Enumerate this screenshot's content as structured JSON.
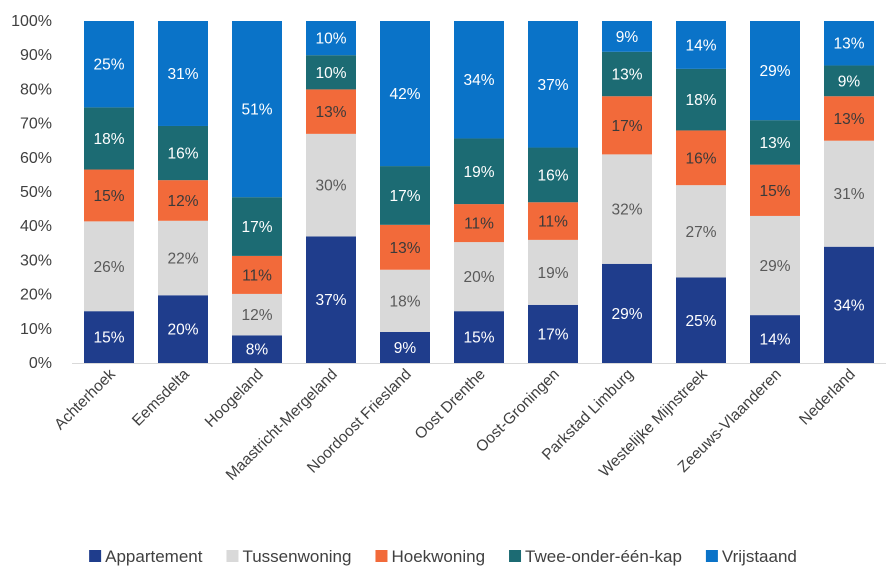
{
  "chart_data": {
    "type": "bar",
    "stacked": true,
    "percent_stacked": true,
    "categories": [
      "Achterhoek",
      "Eemsdelta",
      "Hoogeland",
      "Maastricht-Mergeland",
      "Noordoost Friesland",
      "Oost Drenthe",
      "Oost-Groningen",
      "Parkstad Limburg",
      "Westelijke Mijnstreek",
      "Zeeuws-Vlaanderen",
      "Nederland"
    ],
    "series": [
      {
        "name": "Appartement",
        "color": "#1f3d8c",
        "label_color": "#ffffff",
        "values": [
          15,
          20,
          8,
          37,
          9,
          15,
          17,
          29,
          25,
          14,
          34
        ]
      },
      {
        "name": "Tussenwoning",
        "color": "#d9d9d9",
        "label_color": "#595959",
        "values": [
          26,
          22,
          12,
          30,
          18,
          20,
          19,
          32,
          27,
          29,
          31
        ]
      },
      {
        "name": "Hoekwoning",
        "color": "#f26a3a",
        "label_color": "#3a3a3a",
        "values": [
          15,
          12,
          11,
          13,
          13,
          11,
          11,
          17,
          16,
          15,
          13
        ]
      },
      {
        "name": "Twee-onder-één-kap",
        "color": "#1c6b73",
        "label_color": "#ffffff",
        "values": [
          18,
          16,
          17,
          10,
          17,
          19,
          16,
          13,
          18,
          13,
          9
        ]
      },
      {
        "name": "Vrijstaand",
        "color": "#0a73c8",
        "label_color": "#ffffff",
        "values": [
          25,
          31,
          51,
          10,
          42,
          34,
          37,
          9,
          14,
          29,
          13
        ]
      }
    ],
    "ylim": [
      0,
      100
    ],
    "yticks": [
      "0%",
      "10%",
      "20%",
      "30%",
      "40%",
      "50%",
      "60%",
      "70%",
      "80%",
      "90%",
      "100%"
    ],
    "legend_position": "bottom",
    "grid": false
  }
}
